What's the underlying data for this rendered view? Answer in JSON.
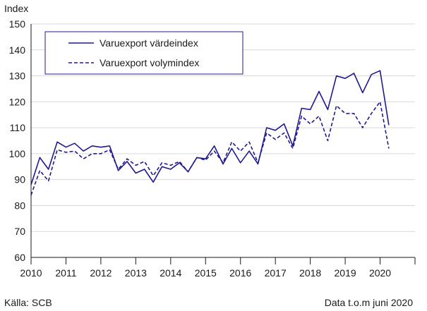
{
  "chart_data": {
    "type": "line",
    "ylabel": "Index",
    "ylim": [
      60,
      150
    ],
    "yticks": [
      60,
      70,
      80,
      90,
      100,
      110,
      120,
      130,
      140,
      150
    ],
    "xlim": [
      2010,
      2021
    ],
    "xticks": [
      "2010",
      "2011",
      "2012",
      "2013",
      "2014",
      "2015",
      "2016",
      "2017",
      "2018",
      "2019",
      "2020"
    ],
    "grid": "horizontal",
    "legend_position": "top-left",
    "series": [
      {
        "name": "Varuexport värdeindex",
        "style": "solid",
        "color": "#1f1a8f",
        "x": [
          2010,
          2010.25,
          2010.5,
          2010.75,
          2011,
          2011.25,
          2011.5,
          2011.75,
          2012,
          2012.25,
          2012.5,
          2012.75,
          2013,
          2013.25,
          2013.5,
          2013.75,
          2014,
          2014.25,
          2014.5,
          2014.75,
          2015,
          2015.25,
          2015.5,
          2015.75,
          2016,
          2016.25,
          2016.5,
          2016.75,
          2017,
          2017.25,
          2017.5,
          2017.75,
          2018,
          2018.25,
          2018.5,
          2018.75,
          2019,
          2019.25,
          2019.5,
          2019.75,
          2020,
          2020.25
        ],
        "values": [
          88,
          98.5,
          94,
          104.5,
          102.5,
          104,
          101,
          103,
          102.5,
          103,
          93.5,
          97,
          92.5,
          94,
          89,
          95,
          94,
          96.5,
          93,
          98.5,
          98,
          103,
          96,
          102,
          96.5,
          101,
          96,
          110,
          109,
          111.5,
          103,
          117.5,
          117,
          124,
          117,
          130,
          129,
          131,
          123.5,
          130.5,
          132,
          111
        ]
      },
      {
        "name": "Varuexport volymindex",
        "style": "dashed",
        "color": "#1f1a8f",
        "x": [
          2010,
          2010.25,
          2010.5,
          2010.75,
          2011,
          2011.25,
          2011.5,
          2011.75,
          2012,
          2012.25,
          2012.5,
          2012.75,
          2013,
          2013.25,
          2013.5,
          2013.75,
          2014,
          2014.25,
          2014.5,
          2014.75,
          2015,
          2015.25,
          2015.5,
          2015.75,
          2016,
          2016.25,
          2016.5,
          2016.75,
          2017,
          2017.25,
          2017.5,
          2017.75,
          2018,
          2018.25,
          2018.5,
          2018.75,
          2019,
          2019.25,
          2019.5,
          2019.75,
          2020,
          2020.25
        ],
        "values": [
          84,
          93.5,
          89.5,
          101.5,
          100.5,
          101,
          98,
          100,
          100,
          101.5,
          94,
          98,
          95.5,
          97,
          91.5,
          96.5,
          95.5,
          97,
          93,
          98.5,
          97.5,
          101,
          96.5,
          104.5,
          101,
          104.5,
          96.5,
          108,
          105.5,
          108,
          102,
          114.5,
          111.5,
          114.5,
          105,
          118.5,
          115.5,
          115.5,
          110,
          115.5,
          120,
          102
        ]
      }
    ]
  },
  "source": "Källa: SCB",
  "note": "Data t.o.m juni 2020"
}
